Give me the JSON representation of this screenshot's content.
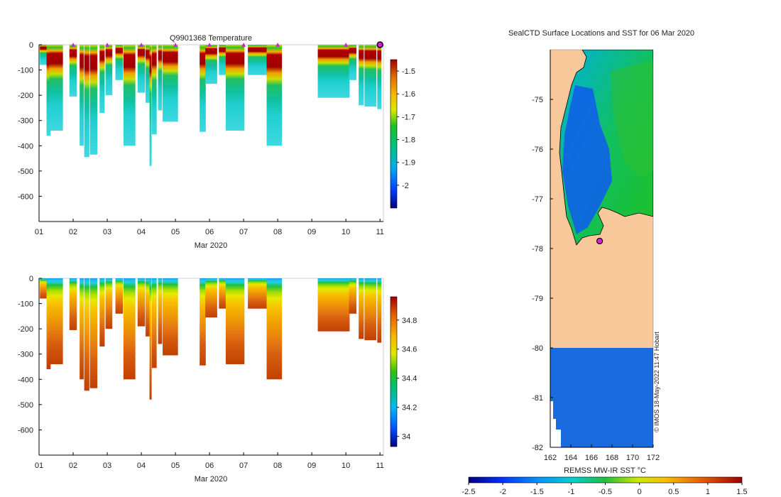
{
  "figure": {
    "credit": "© IMOS 18-May-2022 11:47 Hobart"
  },
  "chart_data": [
    {
      "id": "temperature",
      "type": "heatmap",
      "title": "Q9901368  Temperature",
      "xlabel": "Mar 2020",
      "ylabel": "",
      "x_ticks": [
        "01",
        "02",
        "03",
        "04",
        "05",
        "06",
        "07",
        "08",
        "09",
        "10",
        "11"
      ],
      "x_range_days": [
        1,
        11.1
      ],
      "y_ticks": [
        0,
        -100,
        -200,
        -300,
        -400,
        -500,
        -600
      ],
      "ylim": [
        -700,
        0
      ],
      "colorbar": {
        "ticks": [
          "-1.5",
          "-1.6",
          "-1.7",
          "-1.8",
          "-1.9",
          "-2"
        ],
        "range": [
          -2.1,
          -1.45
        ]
      },
      "markers_days": [
        2,
        3,
        4,
        5,
        6,
        7,
        8,
        10
      ],
      "profiles": [
        {
          "day": 1.15,
          "width": 0.25,
          "depth": 80
        },
        {
          "day": 1.28,
          "width": 0.12,
          "depth": 360
        },
        {
          "day": 1.5,
          "width": 0.4,
          "depth": 340
        },
        {
          "day": 2.0,
          "width": 0.22,
          "depth": 205
        },
        {
          "day": 2.25,
          "width": 0.12,
          "depth": 400
        },
        {
          "day": 2.4,
          "width": 0.15,
          "depth": 445
        },
        {
          "day": 2.6,
          "width": 0.22,
          "depth": 435
        },
        {
          "day": 2.85,
          "width": 0.15,
          "depth": 270
        },
        {
          "day": 3.05,
          "width": 0.2,
          "depth": 200
        },
        {
          "day": 3.35,
          "width": 0.22,
          "depth": 140
        },
        {
          "day": 3.65,
          "width": 0.35,
          "depth": 400
        },
        {
          "day": 4.0,
          "width": 0.22,
          "depth": 190
        },
        {
          "day": 4.2,
          "width": 0.15,
          "depth": 230
        },
        {
          "day": 4.27,
          "width": 0.06,
          "depth": 480
        },
        {
          "day": 4.38,
          "width": 0.14,
          "depth": 355
        },
        {
          "day": 4.55,
          "width": 0.12,
          "depth": 260
        },
        {
          "day": 4.85,
          "width": 0.45,
          "depth": 305
        },
        {
          "day": 5.8,
          "width": 0.18,
          "depth": 345
        },
        {
          "day": 6.05,
          "width": 0.35,
          "depth": 155
        },
        {
          "day": 6.45,
          "width": 0.35,
          "depth": 120
        },
        {
          "day": 6.75,
          "width": 0.55,
          "depth": 340
        },
        {
          "day": 7.45,
          "width": 0.65,
          "depth": 120
        },
        {
          "day": 7.9,
          "width": 0.45,
          "depth": 400
        },
        {
          "day": 9.55,
          "width": 0.75,
          "depth": 210
        },
        {
          "day": 10.0,
          "width": 0.22,
          "depth": 210
        },
        {
          "day": 10.2,
          "width": 0.22,
          "depth": 140
        },
        {
          "day": 10.45,
          "width": 0.15,
          "depth": 240
        },
        {
          "day": 10.72,
          "width": 0.35,
          "depth": 245
        },
        {
          "day": 10.98,
          "width": 0.12,
          "depth": 255
        }
      ]
    },
    {
      "id": "salinity",
      "type": "heatmap",
      "title": "",
      "xlabel": "Mar 2020",
      "ylabel": "",
      "x_ticks": [
        "01",
        "02",
        "03",
        "04",
        "05",
        "06",
        "07",
        "08",
        "09",
        "10",
        "11"
      ],
      "x_range_days": [
        1,
        11.1
      ],
      "y_ticks": [
        0,
        -100,
        -200,
        -300,
        -400,
        -500,
        -600
      ],
      "ylim": [
        -700,
        0
      ],
      "colorbar": {
        "ticks": [
          "34.8",
          "34.6",
          "34.4",
          "34.2",
          "34"
        ],
        "range": [
          33.93,
          34.96
        ]
      }
    },
    {
      "id": "sst_map",
      "type": "heatmap",
      "title": "SealCTD Surface Locations and SST for 06 Mar 2020",
      "xlabel": "",
      "ylabel": "",
      "x_ticks": [
        "162",
        "164",
        "166",
        "168",
        "170",
        "172"
      ],
      "lon_range": [
        162,
        172
      ],
      "y_ticks": [
        "-75",
        "-76",
        "-77",
        "-78",
        "-79",
        "-80",
        "-81",
        "-82"
      ],
      "lat_range": [
        -82,
        -74
      ],
      "seal_location": {
        "lon": 166.8,
        "lat": -77.85
      },
      "colorbar": {
        "label": "REMSS MW-IR SST °C",
        "ticks": [
          "-2.5",
          "-2",
          "-1.5",
          "-1",
          "-0.5",
          "0",
          "0.5",
          "1",
          "1.5"
        ],
        "range": [
          -2.5,
          1.5
        ]
      }
    }
  ]
}
